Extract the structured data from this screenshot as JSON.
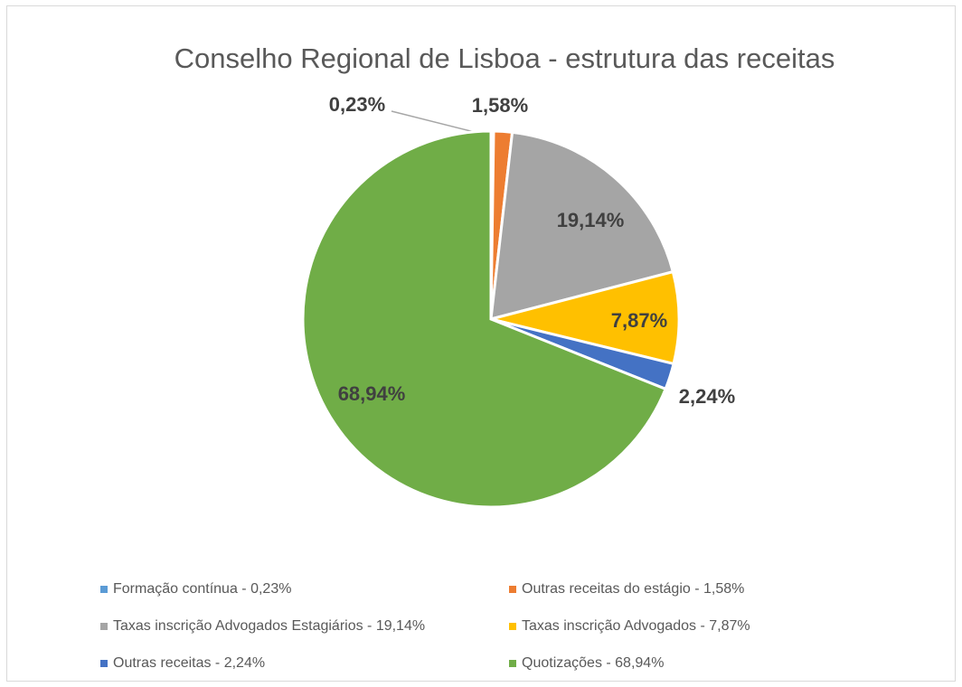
{
  "chart_data": {
    "type": "pie",
    "title": "Conselho Regional de Lisboa - estrutura das receitas",
    "categories": [
      "Formação contínua - 0,23%",
      "Outras receitas do estágio - 1,58%",
      "Taxas inscrição Advogados Estagiários - 19,14%",
      "Taxas inscrição Advogados - 7,87%",
      "Outras receitas - 2,24%",
      "Quotizações - 68,94%"
    ],
    "values": [
      0.23,
      1.58,
      19.14,
      7.87,
      2.24,
      68.94
    ],
    "value_labels": [
      "0,23%",
      "1,58%",
      "19,14%",
      "7,87%",
      "2,24%",
      "68,94%"
    ],
    "colors": [
      "#5b9bd5",
      "#ed7d31",
      "#a5a5a5",
      "#ffc000",
      "#4472c4",
      "#70ad47"
    ],
    "legend": "bottom"
  }
}
